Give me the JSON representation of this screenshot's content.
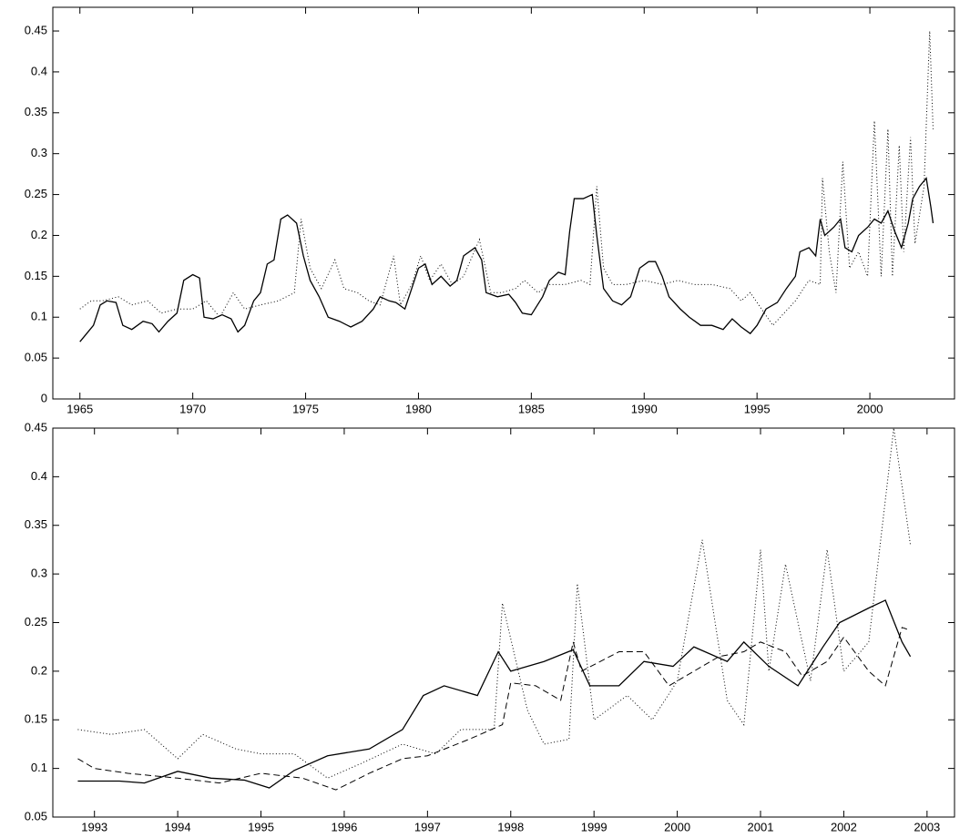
{
  "chart_data": [
    {
      "type": "line",
      "xlim": [
        1963.8,
        2003.75
      ],
      "ylim": [
        0,
        0.479
      ],
      "xticks": [
        1965,
        1970,
        1975,
        1980,
        1985,
        1990,
        1995,
        2000
      ],
      "yticks": [
        0,
        0.05,
        0.1,
        0.15,
        0.2,
        0.25,
        0.3,
        0.35,
        0.4,
        0.45
      ],
      "series": [
        {
          "color": "#000000",
          "style": "solid",
          "x": [
            1965.0,
            1965.3,
            1965.6,
            1965.9,
            1966.2,
            1966.6,
            1966.9,
            1967.3,
            1967.8,
            1968.2,
            1968.5,
            1968.9,
            1969.3,
            1969.6,
            1970.0,
            1970.3,
            1970.5,
            1970.9,
            1971.3,
            1971.7,
            1972.0,
            1972.3,
            1972.7,
            1973.0,
            1973.3,
            1973.6,
            1973.9,
            1974.2,
            1974.6,
            1974.9,
            1975.2,
            1975.6,
            1976.0,
            1976.5,
            1977.0,
            1977.5,
            1978.0,
            1978.3,
            1978.7,
            1979.0,
            1979.4,
            1979.7,
            1980.0,
            1980.3,
            1980.6,
            1981.0,
            1981.4,
            1981.7,
            1982.0,
            1982.5,
            1982.8,
            1983.0,
            1983.5,
            1984.0,
            1984.3,
            1984.6,
            1985.0,
            1985.5,
            1985.8,
            1986.2,
            1986.5,
            1986.7,
            1986.9,
            1987.3,
            1987.7,
            1987.9,
            1988.2,
            1988.6,
            1989.0,
            1989.4,
            1989.8,
            1990.2,
            1990.5,
            1990.8,
            1991.1,
            1991.6,
            1992.0,
            1992.5,
            1993.0,
            1993.5,
            1993.9,
            1994.3,
            1994.7,
            1995.0,
            1995.4,
            1995.9,
            1996.3,
            1996.7,
            1996.9,
            1997.3,
            1997.6,
            1997.8,
            1998.0,
            1998.4,
            1998.7,
            1998.9,
            1999.2,
            1999.5,
            1999.9,
            2000.2,
            2000.5,
            2000.8,
            2001.1,
            2001.4,
            2001.7,
            2001.9,
            2002.2,
            2002.5,
            2002.7,
            2002.8
          ],
          "values": [
            0.07,
            0.08,
            0.09,
            0.115,
            0.12,
            0.118,
            0.09,
            0.085,
            0.095,
            0.092,
            0.082,
            0.095,
            0.105,
            0.145,
            0.152,
            0.148,
            0.1,
            0.098,
            0.103,
            0.098,
            0.082,
            0.09,
            0.12,
            0.13,
            0.165,
            0.17,
            0.22,
            0.225,
            0.215,
            0.175,
            0.145,
            0.125,
            0.1,
            0.095,
            0.088,
            0.095,
            0.11,
            0.125,
            0.12,
            0.118,
            0.11,
            0.135,
            0.16,
            0.165,
            0.14,
            0.15,
            0.138,
            0.145,
            0.175,
            0.185,
            0.17,
            0.13,
            0.125,
            0.128,
            0.118,
            0.105,
            0.103,
            0.125,
            0.145,
            0.155,
            0.152,
            0.205,
            0.245,
            0.245,
            0.25,
            0.2,
            0.135,
            0.12,
            0.115,
            0.125,
            0.16,
            0.168,
            0.168,
            0.15,
            0.125,
            0.11,
            0.1,
            0.09,
            0.09,
            0.085,
            0.098,
            0.088,
            0.08,
            0.09,
            0.11,
            0.118,
            0.135,
            0.15,
            0.18,
            0.185,
            0.175,
            0.22,
            0.2,
            0.21,
            0.22,
            0.185,
            0.18,
            0.2,
            0.21,
            0.22,
            0.215,
            0.23,
            0.205,
            0.185,
            0.215,
            0.245,
            0.26,
            0.27,
            0.235,
            0.215
          ]
        },
        {
          "color": "#000000",
          "style": "dotted",
          "x": [
            1965,
            1965.5,
            1966,
            1966.7,
            1967.3,
            1968,
            1968.6,
            1969.3,
            1970,
            1970.6,
            1971.2,
            1971.8,
            1972.3,
            1973,
            1973.8,
            1974.5,
            1974.8,
            1975.2,
            1975.7,
            1976.3,
            1976.7,
            1977.3,
            1977.8,
            1978.3,
            1978.9,
            1979.2,
            1979.7,
            1980.1,
            1980.5,
            1981,
            1981.5,
            1982,
            1982.7,
            1983.2,
            1983.7,
            1984.3,
            1984.7,
            1985.3,
            1985.8,
            1986.5,
            1987.2,
            1987.6,
            1987.9,
            1988.2,
            1988.6,
            1989.2,
            1990,
            1990.8,
            1991.5,
            1992.2,
            1993,
            1993.8,
            1994.3,
            1994.7,
            1995.2,
            1995.7,
            1996.2,
            1996.7,
            1997.3,
            1997.8,
            1997.9,
            1998.2,
            1998.5,
            1998.8,
            1999.1,
            1999.5,
            1999.9,
            2000.2,
            2000.5,
            2000.8,
            2001.0,
            2001.3,
            2001.5,
            2001.8,
            2002.0,
            2002.4,
            2002.65,
            2002.8
          ],
          "values": [
            0.11,
            0.12,
            0.12,
            0.125,
            0.115,
            0.12,
            0.105,
            0.11,
            0.11,
            0.12,
            0.1,
            0.13,
            0.11,
            0.115,
            0.12,
            0.13,
            0.22,
            0.16,
            0.135,
            0.17,
            0.135,
            0.13,
            0.12,
            0.115,
            0.175,
            0.115,
            0.14,
            0.175,
            0.145,
            0.165,
            0.14,
            0.15,
            0.195,
            0.13,
            0.13,
            0.135,
            0.145,
            0.13,
            0.14,
            0.14,
            0.145,
            0.14,
            0.26,
            0.16,
            0.14,
            0.14,
            0.145,
            0.14,
            0.145,
            0.14,
            0.14,
            0.135,
            0.12,
            0.13,
            0.11,
            0.09,
            0.105,
            0.12,
            0.145,
            0.14,
            0.27,
            0.18,
            0.13,
            0.29,
            0.16,
            0.18,
            0.15,
            0.34,
            0.15,
            0.33,
            0.15,
            0.31,
            0.18,
            0.32,
            0.19,
            0.26,
            0.45,
            0.33
          ]
        }
      ]
    },
    {
      "type": "line",
      "xlim": [
        1992.5,
        2003.33
      ],
      "ylim": [
        0.05,
        0.45
      ],
      "xticks": [
        1993,
        1994,
        1995,
        1996,
        1997,
        1998,
        1999,
        2000,
        2001,
        2002,
        2003
      ],
      "yticks": [
        0.05,
        0.1,
        0.15,
        0.2,
        0.25,
        0.3,
        0.35,
        0.4,
        0.45
      ],
      "series": [
        {
          "color": "#000000",
          "style": "solid",
          "x": [
            1992.8,
            1993.3,
            1993.6,
            1994,
            1994.4,
            1994.8,
            1995.1,
            1995.4,
            1995.8,
            1996.3,
            1996.7,
            1996.95,
            1997.2,
            1997.6,
            1997.85,
            1998.0,
            1998.4,
            1998.75,
            1998.95,
            1999.3,
            1999.6,
            1999.95,
            2000.2,
            2000.6,
            2000.8,
            2001.1,
            2001.45,
            2001.75,
            2001.95,
            2002.3,
            2002.5,
            2002.7,
            2002.8
          ],
          "values": [
            0.087,
            0.087,
            0.085,
            0.097,
            0.09,
            0.088,
            0.08,
            0.098,
            0.113,
            0.12,
            0.14,
            0.175,
            0.185,
            0.175,
            0.22,
            0.2,
            0.21,
            0.222,
            0.185,
            0.185,
            0.21,
            0.205,
            0.225,
            0.21,
            0.23,
            0.205,
            0.185,
            0.225,
            0.25,
            0.265,
            0.273,
            0.23,
            0.215
          ]
        },
        {
          "color": "#000000",
          "style": "dashed",
          "x": [
            1992.8,
            1993.0,
            1993.4,
            1994,
            1994.5,
            1995,
            1995.5,
            1995.9,
            1996.3,
            1996.7,
            1997,
            1997.5,
            1997.9,
            1998.0,
            1998.3,
            1998.6,
            1998.75,
            1998.85,
            1999.3,
            1999.6,
            1999.9,
            2000.2,
            2000.5,
            2000.8,
            2001.0,
            2001.3,
            2001.5,
            2001.8,
            2002.0,
            2002.3,
            2002.5,
            2002.7,
            2002.8
          ],
          "values": [
            0.11,
            0.1,
            0.095,
            0.09,
            0.085,
            0.095,
            0.09,
            0.078,
            0.095,
            0.11,
            0.113,
            0.13,
            0.145,
            0.188,
            0.185,
            0.17,
            0.23,
            0.2,
            0.22,
            0.22,
            0.185,
            0.2,
            0.215,
            0.22,
            0.23,
            0.22,
            0.195,
            0.21,
            0.235,
            0.2,
            0.185,
            0.245,
            0.242
          ]
        },
        {
          "color": "#000000",
          "style": "dotted",
          "x": [
            1992.8,
            1993.2,
            1993.6,
            1994.0,
            1994.3,
            1994.7,
            1995.0,
            1995.4,
            1995.8,
            1996.2,
            1996.7,
            1997.1,
            1997.4,
            1997.8,
            1997.9,
            1998.2,
            1998.4,
            1998.7,
            1998.8,
            1999.0,
            1999.4,
            1999.7,
            2000.0,
            2000.3,
            2000.6,
            2000.8,
            2001.0,
            2001.1,
            2001.3,
            2001.6,
            2001.8,
            2002.0,
            2002.3,
            2002.6,
            2002.8
          ],
          "values": [
            0.14,
            0.135,
            0.14,
            0.11,
            0.135,
            0.12,
            0.115,
            0.115,
            0.09,
            0.105,
            0.125,
            0.115,
            0.14,
            0.14,
            0.27,
            0.16,
            0.125,
            0.13,
            0.29,
            0.15,
            0.175,
            0.15,
            0.19,
            0.335,
            0.17,
            0.145,
            0.325,
            0.2,
            0.31,
            0.19,
            0.325,
            0.2,
            0.23,
            0.45,
            0.33
          ]
        }
      ]
    }
  ]
}
